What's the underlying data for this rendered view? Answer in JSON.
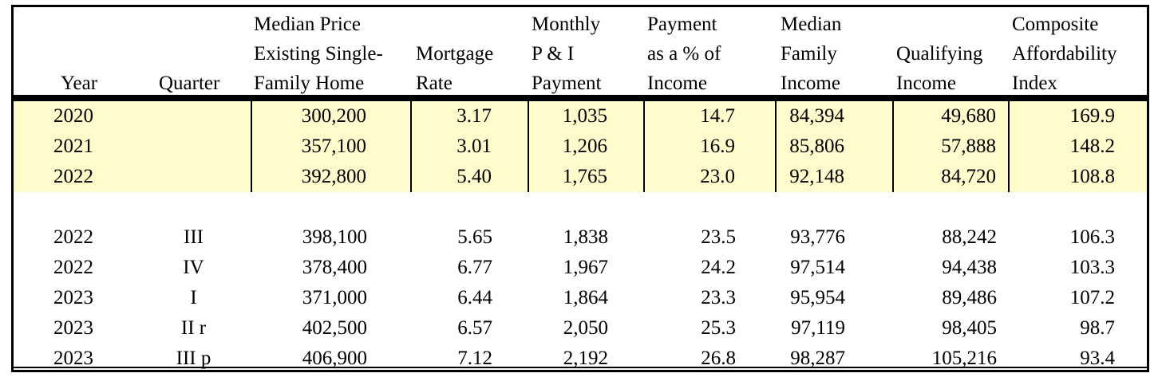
{
  "headers": {
    "year": [
      "Year"
    ],
    "quarter": [
      "Quarter"
    ],
    "median_price": [
      "Median Price",
      "Existing Single-",
      "Family Home"
    ],
    "mortgage_rate": [
      "Mortgage",
      "Rate"
    ],
    "monthly_payment": [
      "Monthly",
      "P & I",
      "Payment"
    ],
    "payment_pct": [
      "Payment",
      "as a % of",
      "Income"
    ],
    "median_income": [
      "Median",
      "Family",
      "Income"
    ],
    "qualifying_income": [
      "Qualifying",
      "Income"
    ],
    "affordability_index": [
      "Composite",
      "Affordability",
      "Index"
    ]
  },
  "annual_rows": [
    {
      "year": "2020",
      "quarter": "",
      "price": "300,200",
      "rate": "3.17",
      "payment": "1,035",
      "pct": "14.7",
      "income": "84,394",
      "qualifying": "49,680",
      "index": "169.9"
    },
    {
      "year": "2021",
      "quarter": "",
      "price": "357,100",
      "rate": "3.01",
      "payment": "1,206",
      "pct": "16.9",
      "income": "85,806",
      "qualifying": "57,888",
      "index": "148.2"
    },
    {
      "year": "2022",
      "quarter": "",
      "price": "392,800",
      "rate": "5.40",
      "payment": "1,765",
      "pct": "23.0",
      "income": "92,148",
      "qualifying": "84,720",
      "index": "108.8"
    }
  ],
  "quarterly_rows": [
    {
      "year": "2022",
      "quarter": "III",
      "price": "398,100",
      "rate": "5.65",
      "payment": "1,838",
      "pct": "23.5",
      "income": "93,776",
      "qualifying": "88,242",
      "index": "106.3"
    },
    {
      "year": "2022",
      "quarter": "IV",
      "price": "378,400",
      "rate": "6.77",
      "payment": "1,967",
      "pct": "24.2",
      "income": "97,514",
      "qualifying": "94,438",
      "index": "103.3"
    },
    {
      "year": "2023",
      "quarter": "I",
      "price": "371,000",
      "rate": "6.44",
      "payment": "1,864",
      "pct": "23.3",
      "income": "95,954",
      "qualifying": "89,486",
      "index": "107.2"
    },
    {
      "year": "2023",
      "quarter": "II r",
      "price": "402,500",
      "rate": "6.57",
      "payment": "2,050",
      "pct": "25.3",
      "income": "97,119",
      "qualifying": "98,405",
      "index": "98.7"
    },
    {
      "year": "2023",
      "quarter": "III p",
      "price": "406,900",
      "rate": "7.12",
      "payment": "2,192",
      "pct": "26.8",
      "income": "98,287",
      "qualifying": "105,216",
      "index": "93.4"
    }
  ],
  "highlight_color": "#fffbcc"
}
